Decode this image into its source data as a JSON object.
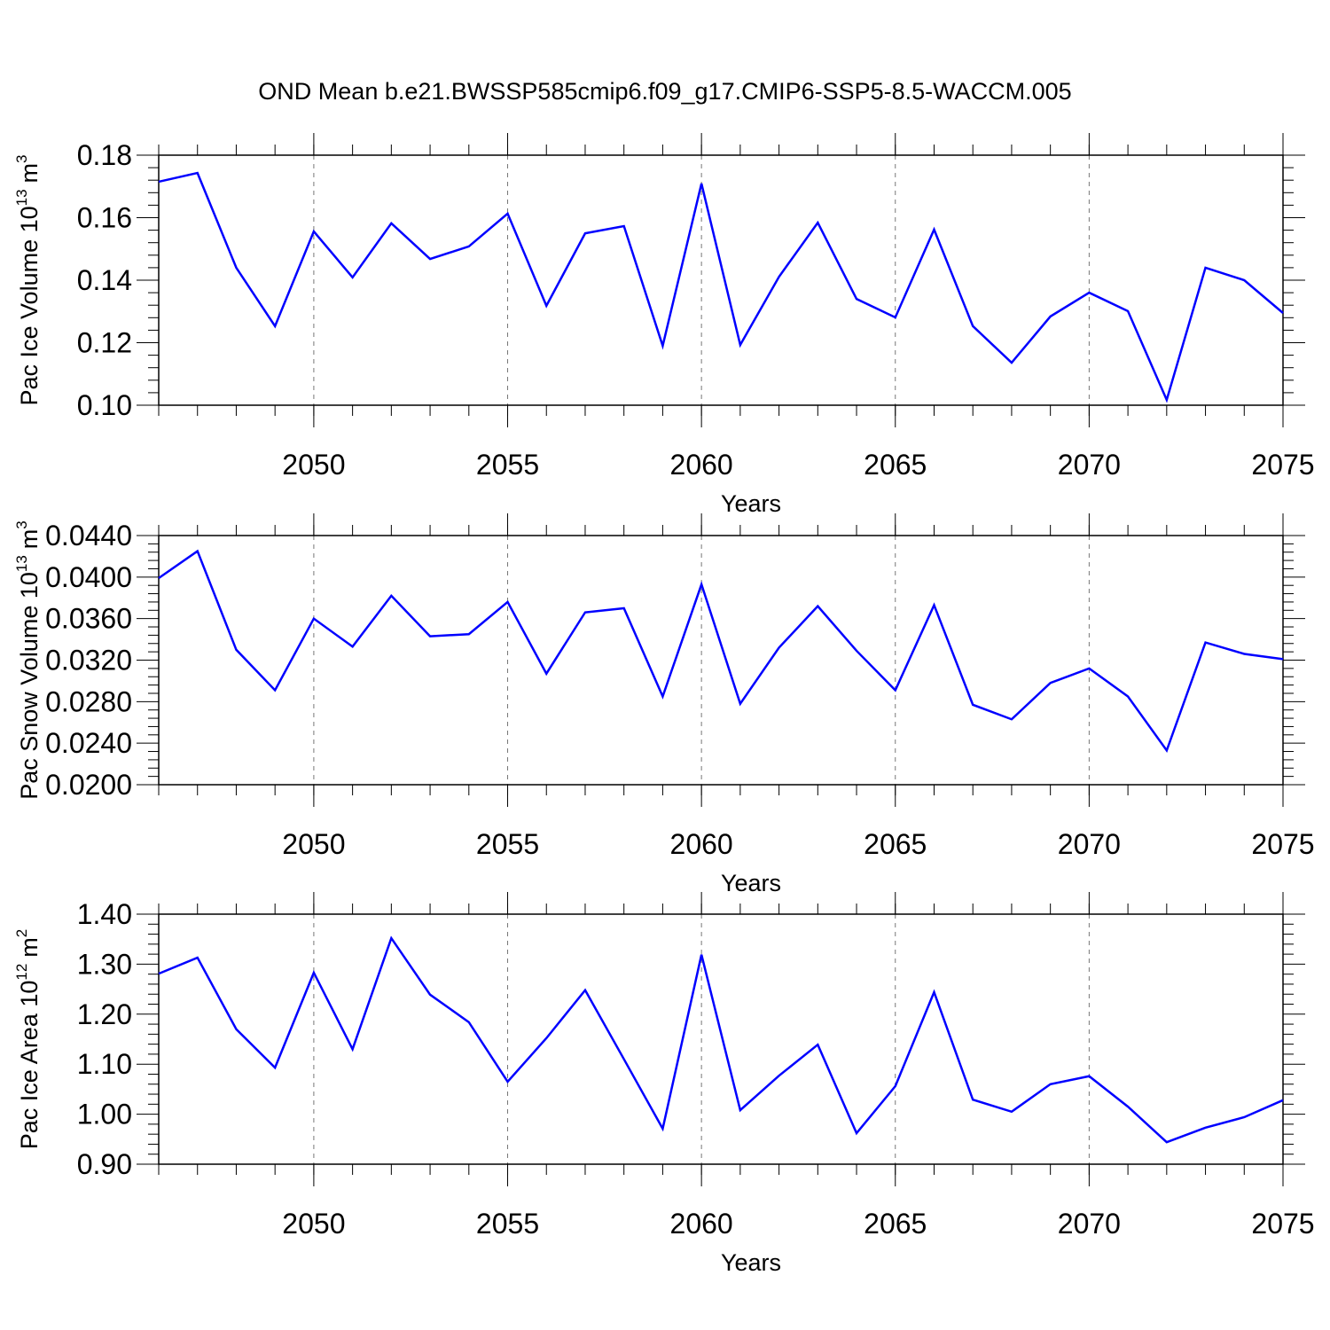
{
  "title": "OND Mean b.e21.BWSSP585cmip6.f09_g17.CMIP6-SSP5-8.5-WACCM.005",
  "chart_data": [
    {
      "type": "line",
      "xlabel": "Years",
      "ylabel": {
        "text": "Pac Ice Volume 10",
        "exp": "13",
        "unit": "m",
        "unit_exp": "3"
      },
      "x": [
        2046,
        2047,
        2048,
        2049,
        2050,
        2051,
        2052,
        2053,
        2054,
        2055,
        2056,
        2057,
        2058,
        2059,
        2060,
        2061,
        2062,
        2063,
        2064,
        2065,
        2066,
        2067,
        2068,
        2069,
        2070,
        2071,
        2072,
        2073,
        2074,
        2075
      ],
      "series": [
        {
          "color": "#0000ff",
          "values": [
            0.1715,
            0.1743,
            0.144,
            0.1253,
            0.1556,
            0.1409,
            0.1582,
            0.1468,
            0.1508,
            0.1613,
            0.1318,
            0.155,
            0.1573,
            0.119,
            0.1709,
            0.1193,
            0.1411,
            0.1584,
            0.134,
            0.1281,
            0.1562,
            0.1253,
            0.1136,
            0.1284,
            0.136,
            0.1301,
            0.1017,
            0.144,
            0.14,
            0.1295
          ]
        }
      ],
      "xlim": [
        2046,
        2075
      ],
      "xticks": [
        2050,
        2055,
        2060,
        2065,
        2070,
        2075
      ],
      "ylim": [
        0.1,
        0.18
      ],
      "yticks": [
        {
          "value": 0.1,
          "label": "0.10"
        },
        0.12,
        0.14,
        0.16,
        0.18
      ],
      "xgrid": true
    },
    {
      "type": "line",
      "xlabel": "Years",
      "ylabel": {
        "text": "Pac Snow Volume 10",
        "exp": "13",
        "unit": "m",
        "unit_exp": "3"
      },
      "x": [
        2046,
        2047,
        2048,
        2049,
        2050,
        2051,
        2052,
        2053,
        2054,
        2055,
        2056,
        2057,
        2058,
        2059,
        2060,
        2061,
        2062,
        2063,
        2064,
        2065,
        2066,
        2067,
        2068,
        2069,
        2070,
        2071,
        2072,
        2073,
        2074,
        2075
      ],
      "series": [
        {
          "color": "#0000ff",
          "values": [
            0.0399,
            0.0425,
            0.033,
            0.0291,
            0.036,
            0.0333,
            0.0382,
            0.0343,
            0.0345,
            0.0376,
            0.0307,
            0.0366,
            0.037,
            0.0285,
            0.0393,
            0.0278,
            0.0332,
            0.0372,
            0.0329,
            0.0291,
            0.0373,
            0.0277,
            0.0263,
            0.0298,
            0.0312,
            0.0285,
            0.0233,
            0.0337,
            0.0326,
            0.0321
          ]
        }
      ],
      "xlim": [
        2046,
        2075
      ],
      "xticks": [
        2050,
        2055,
        2060,
        2065,
        2070,
        2075
      ],
      "ylim": [
        0.02,
        0.044
      ],
      "yticks": [
        {
          "value": 0.02,
          "label": "0.0200"
        },
        {
          "value": 0.024,
          "label": "0.0240"
        },
        {
          "value": 0.028,
          "label": "0.0280"
        },
        {
          "value": 0.032,
          "label": "0.0320"
        },
        {
          "value": 0.036,
          "label": "0.0360"
        },
        {
          "value": 0.04,
          "label": "0.0400"
        },
        {
          "value": 0.044,
          "label": "0.0440"
        }
      ],
      "xgrid": true
    },
    {
      "type": "line",
      "xlabel": "Years",
      "ylabel": {
        "text": "Pac Ice Area 10",
        "exp": "12",
        "unit": "m",
        "unit_exp": "2"
      },
      "x": [
        2046,
        2047,
        2048,
        2049,
        2050,
        2051,
        2052,
        2053,
        2054,
        2055,
        2056,
        2057,
        2058,
        2059,
        2060,
        2061,
        2062,
        2063,
        2064,
        2065,
        2066,
        2067,
        2068,
        2069,
        2070,
        2071,
        2072,
        2073,
        2074,
        2075
      ],
      "series": [
        {
          "color": "#0000ff",
          "values": [
            1.281,
            1.313,
            1.17,
            1.093,
            1.283,
            1.13,
            1.352,
            1.239,
            1.184,
            1.065,
            1.152,
            1.248,
            1.11,
            0.971,
            1.319,
            1.008,
            1.077,
            1.139,
            0.962,
            1.056,
            1.244,
            1.029,
            1.005,
            1.06,
            1.076,
            1.015,
            0.944,
            0.973,
            0.994,
            1.028
          ]
        }
      ],
      "xlim": [
        2046,
        2075
      ],
      "xticks": [
        2050,
        2055,
        2060,
        2065,
        2070,
        2075
      ],
      "ylim": [
        0.9,
        1.4
      ],
      "yticks": [
        {
          "value": 0.9,
          "label": "0.90"
        },
        {
          "value": 1.0,
          "label": "1.00"
        },
        {
          "value": 1.1,
          "label": "1.10"
        },
        {
          "value": 1.2,
          "label": "1.20"
        },
        {
          "value": 1.3,
          "label": "1.30"
        },
        {
          "value": 1.4,
          "label": "1.40"
        }
      ],
      "xgrid": true
    }
  ]
}
